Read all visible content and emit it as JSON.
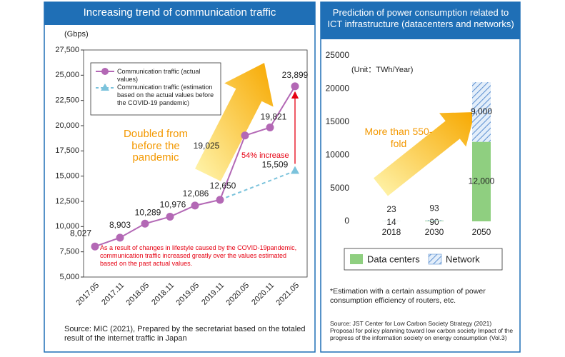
{
  "chart_data": [
    {
      "type": "line",
      "title": "Increasing trend of communication traffic",
      "y_label": "(Gbps)",
      "categories": [
        "2017.05",
        "2017.11",
        "2018.05",
        "2018.11",
        "2019.05",
        "2019.11",
        "2020.05",
        "2020.11",
        "2021.05"
      ],
      "series": [
        {
          "name": "Communication traffic (actual values)",
          "color": "#b368b5",
          "style": "solid",
          "marker": "circle",
          "values": [
            8027,
            8903,
            10289,
            10976,
            12086,
            12650,
            19025,
            19821,
            23899
          ],
          "value_labels": [
            "8,027",
            "8,903",
            "10,289",
            "10,976",
            "12,086",
            "12,650",
            "19,025",
            "19,821",
            "23,899"
          ]
        },
        {
          "name": "Communication traffic (estimation based on the actual values before the COVID-19 pandemic)",
          "color": "#7cc3dc",
          "style": "dashed",
          "marker": "triangle",
          "values": [
            null,
            null,
            null,
            null,
            null,
            12650,
            13600,
            14550,
            15509
          ],
          "value_labels": [
            null,
            null,
            null,
            null,
            null,
            null,
            null,
            null,
            "15,509"
          ]
        }
      ],
      "ylim": [
        5000,
        27500
      ],
      "yticks": [
        {
          "value": 5000,
          "label": "5,000"
        },
        {
          "value": 7500,
          "label": "7,500"
        },
        {
          "value": 10000,
          "label": "10,000"
        },
        {
          "value": 12500,
          "label": "12,500"
        },
        {
          "value": 15000,
          "label": "15,000"
        },
        {
          "value": 17500,
          "label": "17,500"
        },
        {
          "value": 20000,
          "label": "20,000"
        },
        {
          "value": 22500,
          "label": "22,500"
        },
        {
          "value": 25000,
          "label": "25,000"
        },
        {
          "value": 27500,
          "label": "27,500"
        }
      ],
      "annotations": [
        "Doubled from before the pandemic",
        "54% increase",
        "As a result of changes in lifestyle caused by the COVID-19pandemic, communication traffic increased greatly over the values estimated based on the past actual values."
      ],
      "source": "Source: MIC (2021), Prepared by the secretariat based on the totaled result of the internet traffic in Japan"
    },
    {
      "type": "stacked_bar",
      "title": "Prediction of power consumption related to ICT infrastructure (datacenters and networks)",
      "y_label": "(Unit：TWh/Year)",
      "categories": [
        "2018",
        "2030",
        "2050"
      ],
      "series": [
        {
          "name": "Data centers",
          "color": "#8fcf80",
          "values": [
            14,
            90,
            12000
          ],
          "value_labels": [
            "14",
            "90",
            "12,000"
          ]
        },
        {
          "name": "Network",
          "color": "#5b8fd0",
          "pattern": "hatch",
          "values": [
            23,
            93,
            9000
          ],
          "value_labels": [
            "23",
            "93",
            "9,000"
          ]
        }
      ],
      "ylim": [
        0,
        25000
      ],
      "yticks": [
        0,
        5000,
        10000,
        15000,
        20000,
        25000
      ],
      "annotations": [
        "More than 550-fold"
      ],
      "note": "*Estimation with a certain assumption of power consumption efficiency of routers, etc.",
      "source": "Source: JST Center for Low Carbon Society Strategy (2021) Proposal for policy planning toward low carbon society Impact of the progress of the information society on energy consumption (Vol.3)"
    }
  ]
}
